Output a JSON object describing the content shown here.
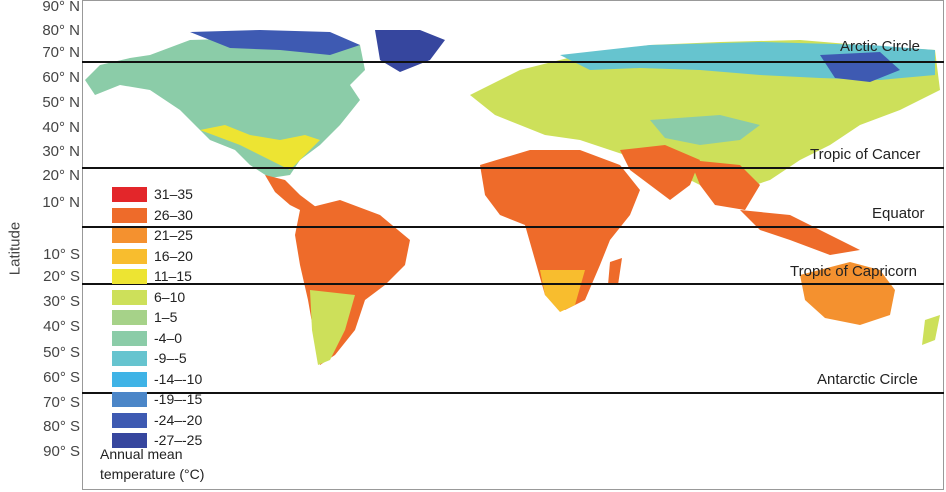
{
  "y_axis_label": "Latitude",
  "latitude_ticks": [
    "90° N",
    "80° N",
    "70° N",
    "60° N",
    "50° N",
    "40° N",
    "30° N",
    "20° N",
    "10° N",
    "10° S",
    "20° S",
    "30° S",
    "40° S",
    "50° S",
    "60° S",
    "70° S",
    "80° S",
    "90° S"
  ],
  "reference_lines": [
    {
      "label": "Arctic Circle",
      "latitude": 66.5
    },
    {
      "label": "Tropic of Cancer",
      "latitude": 23.5
    },
    {
      "label": "Equator",
      "latitude": 0
    },
    {
      "label": "Tropic of Capricorn",
      "latitude": -23.5
    },
    {
      "label": "Antarctic Circle",
      "latitude": -66.5
    }
  ],
  "legend": {
    "title_line1": "Annual mean",
    "title_line2": "temperature (°C)",
    "items": [
      {
        "label": "31–35",
        "color": "#e3262a"
      },
      {
        "label": "26–30",
        "color": "#ee6b2a"
      },
      {
        "label": "21–25",
        "color": "#f4912f"
      },
      {
        "label": "16–20",
        "color": "#f8bd2e"
      },
      {
        "label": "11–15",
        "color": "#ede432"
      },
      {
        "label": "6–10",
        "color": "#cde05a"
      },
      {
        "label": "1–5",
        "color": "#a6d289"
      },
      {
        "label": "-4–0",
        "color": "#8bcca8"
      },
      {
        "label": "-9–-5",
        "color": "#66c4cf"
      },
      {
        "label": "-14–-10",
        "color": "#3fb3e6"
      },
      {
        "label": "-19–-15",
        "color": "#4b86c8"
      },
      {
        "label": "-24–-20",
        "color": "#3e5ab2"
      },
      {
        "label": "-27–-25",
        "color": "#36469e"
      }
    ]
  }
}
